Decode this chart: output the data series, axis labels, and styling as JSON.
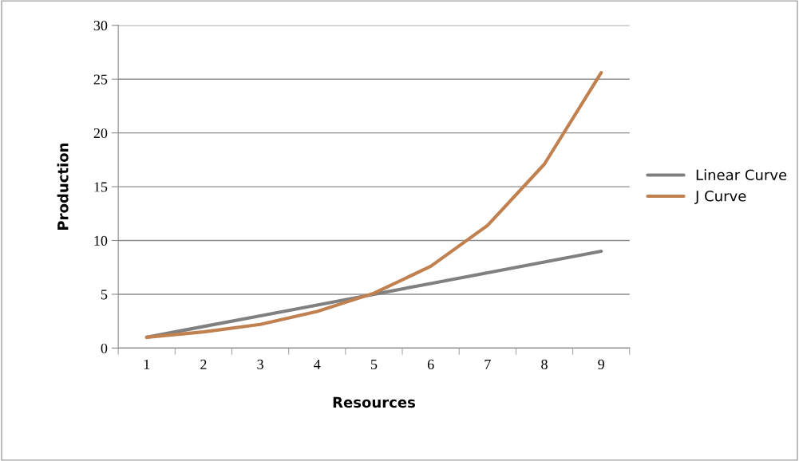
{
  "chart_data": {
    "type": "line",
    "xlabel": "Resources",
    "ylabel": "Production",
    "categories": [
      "1",
      "2",
      "3",
      "4",
      "5",
      "6",
      "7",
      "8",
      "9"
    ],
    "series": [
      {
        "name": "Linear Curve",
        "color": "#808080",
        "values": [
          1,
          2,
          3,
          4,
          5,
          6,
          7,
          8,
          9
        ]
      },
      {
        "name": "J Curve",
        "color": "#c0804f",
        "values": [
          1,
          1.5,
          2.2,
          3.4,
          5.1,
          7.6,
          11.4,
          17.1,
          25.6
        ]
      }
    ],
    "ylim": [
      0,
      30
    ],
    "yticks": [
      0,
      5,
      10,
      15,
      20,
      25,
      30
    ],
    "grid": "y",
    "legend": "right",
    "marker": "none",
    "line_style": "solid"
  }
}
